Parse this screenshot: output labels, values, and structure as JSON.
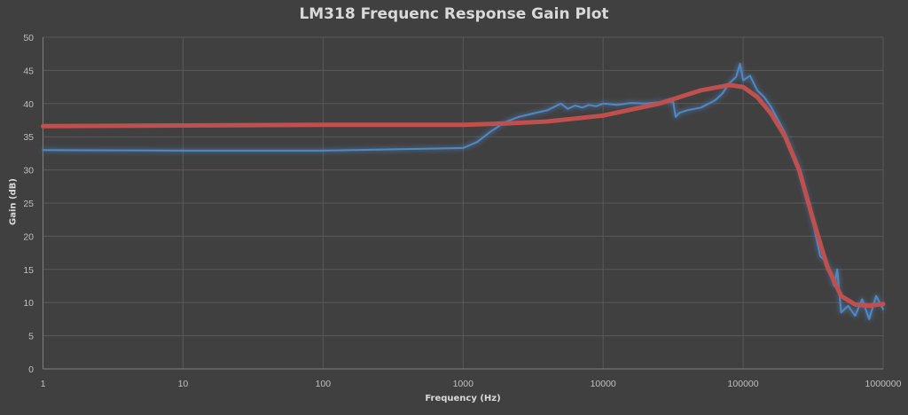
{
  "chart_data": {
    "type": "line",
    "title": "LM318 Frequenc Response Gain Plot",
    "xlabel": "Frequency (Hz)",
    "ylabel": "Gain (dB)",
    "x_scale": "log",
    "xlim": [
      1,
      1000000
    ],
    "ylim": [
      0,
      50
    ],
    "x_ticks": [
      "1",
      "10",
      "100",
      "1000",
      "10000",
      "100000",
      "1000000"
    ],
    "y_ticks": [
      "0",
      "5",
      "10",
      "15",
      "20",
      "25",
      "30",
      "35",
      "40",
      "45",
      "50"
    ],
    "grid": true,
    "legend": "none",
    "background_color": "#404040",
    "series": [
      {
        "color": "#4f88c6",
        "x": [
          1,
          10,
          100,
          1000,
          1260,
          1580,
          2000,
          2500,
          3160,
          4000,
          5000,
          5600,
          6300,
          7100,
          7900,
          8900,
          10000,
          12600,
          15800,
          20000,
          25100,
          31600,
          33000,
          35000,
          40000,
          50000,
          63000,
          71000,
          79000,
          89000,
          95000,
          100000,
          112000,
          126000,
          141000,
          158000,
          178000,
          200000,
          251000,
          316000,
          355000,
          398000,
          447000,
          470000,
          501000,
          562000,
          631000,
          708000,
          794000,
          891000,
          1000000
        ],
        "y": [
          33,
          32.9,
          32.9,
          33.3,
          34.2,
          35.8,
          37.2,
          38.0,
          38.5,
          39.0,
          40.0,
          39.2,
          39.7,
          39.4,
          39.8,
          39.6,
          40.0,
          39.8,
          40.1,
          40.0,
          40.2,
          40.3,
          38.0,
          38.6,
          39.0,
          39.4,
          40.5,
          41.5,
          43.0,
          44.0,
          46.0,
          43.5,
          44.2,
          42.0,
          41.0,
          39.5,
          37.5,
          35.5,
          30.5,
          22.0,
          17.0,
          16.0,
          12.5,
          15.0,
          8.5,
          9.5,
          8.0,
          10.5,
          7.5,
          11.0,
          9.0
        ]
      },
      {
        "color": "#c0504d",
        "x": [
          1,
          10,
          100,
          1000,
          2000,
          3980,
          10000,
          25100,
          50100,
          79400,
          100000,
          126000,
          158000,
          200000,
          251000,
          316000,
          398000,
          501000,
          631000,
          794000,
          1000000
        ],
        "y": [
          36.6,
          36.7,
          36.8,
          36.8,
          37.0,
          37.3,
          38.2,
          40.0,
          42.0,
          42.8,
          42.5,
          41.0,
          38.5,
          35.0,
          30.0,
          22.5,
          15.5,
          11.0,
          9.7,
          9.5,
          9.8
        ]
      }
    ]
  }
}
